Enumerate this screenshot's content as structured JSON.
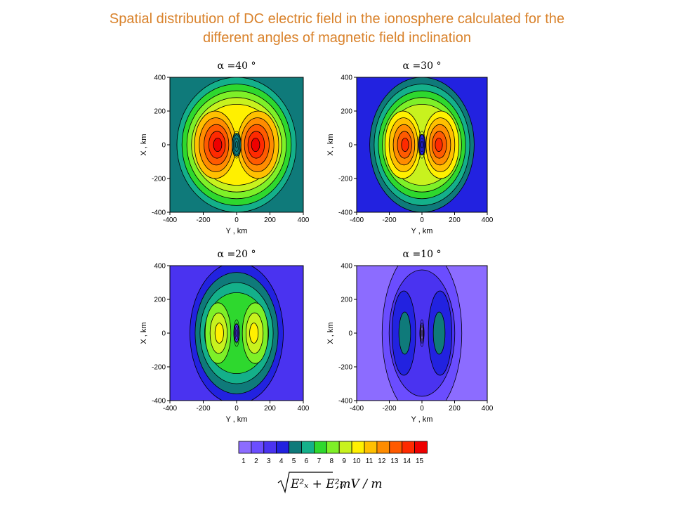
{
  "page": {
    "title_line1": "Spatial distribution of DC electric field in the ionosphere calculated for the",
    "title_line2": "different angles of magnetic field inclination",
    "title_color": "#d9822b"
  },
  "chart_data": [
    {
      "type": "heatmap",
      "title": "α =40 °",
      "alpha_deg": 40,
      "xlabel": "Y , km",
      "ylabel": "X , km",
      "xlim": [
        -400,
        400
      ],
      "ylim": [
        -400,
        400
      ],
      "xticks": [
        "-400",
        "-200",
        "0",
        "200",
        "400"
      ],
      "yticks": [
        "400",
        "200",
        "0",
        "-200",
        "-400"
      ],
      "peak_level": 15,
      "peak_y_km": [
        -110,
        110
      ],
      "background_level": 5,
      "lobe_shape": "wide rounded"
    },
    {
      "type": "heatmap",
      "title": "α =30 °",
      "alpha_deg": 30,
      "xlabel": "Y , km",
      "ylabel": "X , km",
      "xlim": [
        -400,
        400
      ],
      "ylim": [
        -400,
        400
      ],
      "xticks": [
        "-400",
        "-200",
        "0",
        "200",
        "400"
      ],
      "yticks": [
        "400",
        "200",
        "0",
        "-200",
        "-400"
      ],
      "peak_level": 14,
      "peak_y_km": [
        -100,
        100
      ],
      "background_level": 4,
      "lobe_shape": "two lobes with waist"
    },
    {
      "type": "heatmap",
      "title": "α =20 °",
      "alpha_deg": 20,
      "xlabel": "Y , km",
      "ylabel": "X , km",
      "xlim": [
        -400,
        400
      ],
      "ylim": [
        -400,
        400
      ],
      "xticks": [
        "-400",
        "-200",
        "0",
        "200",
        "400"
      ],
      "yticks": [
        "400",
        "200",
        "0",
        "-200",
        "-400"
      ],
      "peak_level": 10,
      "peak_y_km": [
        -100,
        100
      ],
      "background_level": 3,
      "lobe_shape": "elongated lobes"
    },
    {
      "type": "heatmap",
      "title": "α =10 °",
      "alpha_deg": 10,
      "xlabel": "Y , km",
      "ylabel": "X , km",
      "xlim": [
        -400,
        400
      ],
      "ylim": [
        -400,
        400
      ],
      "xticks": [
        "-400",
        "-200",
        "0",
        "200",
        "400"
      ],
      "yticks": [
        "400",
        "200",
        "0",
        "-200",
        "-400"
      ],
      "peak_level": 5,
      "peak_y_km": [
        -100,
        100
      ],
      "background_level": 1,
      "lobe_shape": "narrow vertical lobes"
    }
  ],
  "colorbar": {
    "ticks": [
      "1",
      "2",
      "3",
      "4",
      "5",
      "6",
      "7",
      "8",
      "9",
      "10",
      "11",
      "12",
      "13",
      "14",
      "15"
    ],
    "colors": [
      "#8c6cff",
      "#6b4dff",
      "#4a33f0",
      "#2222e0",
      "#0f7a7a",
      "#14b08a",
      "#2ed82e",
      "#7ef028",
      "#c8f21e",
      "#fff000",
      "#ffc000",
      "#ff8c00",
      "#ff5a00",
      "#ff2a00",
      "#ee0000"
    ],
    "unit_label": ",mV / m",
    "formula": "√(Ex² + Ey²)"
  }
}
